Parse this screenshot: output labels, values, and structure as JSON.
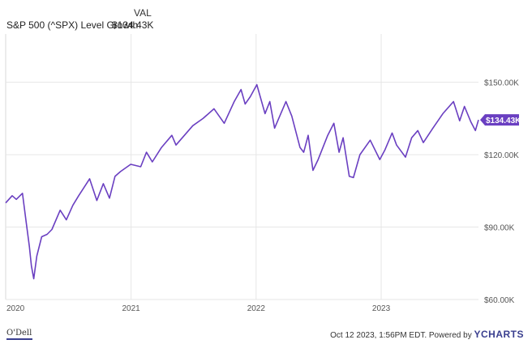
{
  "header": {
    "value_column": "VAL",
    "series_label": "S&P 500 (^SPX) Level Growth",
    "series_value": "$134.43K"
  },
  "footer": {
    "timestamp": "Oct 12 2023, 1:56PM EDT.",
    "powered_by": "Powered by",
    "brand": "YCHARTS",
    "logo_text": "O'Dell"
  },
  "chart_data": {
    "type": "line",
    "title": "",
    "xlabel": "",
    "ylabel": "",
    "x_ticks": [
      "2020",
      "2021",
      "2022",
      "2023"
    ],
    "y_ticks": [
      "$60.00K",
      "$90.00K",
      "$120.00K",
      "$150.00K"
    ],
    "ylim": [
      60,
      170
    ],
    "y_unit": "thousands of dollars",
    "grid": true,
    "line_color": "#6a3fc1",
    "end_label": "$134.43K",
    "series": [
      {
        "name": "S&P 500 (^SPX) Level Growth",
        "points": [
          [
            "2020-01",
            100.0
          ],
          [
            "2020-01-20",
            103.0
          ],
          [
            "2020-02-01",
            101.5
          ],
          [
            "2020-02-19",
            104.0
          ],
          [
            "2020-03-01",
            92.0
          ],
          [
            "2020-03-10",
            82.0
          ],
          [
            "2020-03-16",
            74.0
          ],
          [
            "2020-03-23",
            68.6
          ],
          [
            "2020-04-01",
            78.0
          ],
          [
            "2020-04-15",
            86.0
          ],
          [
            "2020-05-01",
            87.0
          ],
          [
            "2020-05-15",
            89.0
          ],
          [
            "2020-06-08",
            97.0
          ],
          [
            "2020-06-26",
            93.0
          ],
          [
            "2020-07-15",
            99.0
          ],
          [
            "2020-08-01",
            103.0
          ],
          [
            "2020-09-02",
            110.0
          ],
          [
            "2020-09-23",
            101.0
          ],
          [
            "2020-10-12",
            108.0
          ],
          [
            "2020-10-30",
            102.0
          ],
          [
            "2020-11-15",
            111.0
          ],
          [
            "2020-12-01",
            113.0
          ],
          [
            "2020-12-31",
            116.0
          ],
          [
            "2021-01-29",
            115.0
          ],
          [
            "2021-02-15",
            121.0
          ],
          [
            "2021-03-04",
            117.0
          ],
          [
            "2021-03-31",
            123.0
          ],
          [
            "2021-04-30",
            128.0
          ],
          [
            "2021-05-12",
            124.0
          ],
          [
            "2021-06-30",
            132.0
          ],
          [
            "2021-07-30",
            135.0
          ],
          [
            "2021-08-31",
            139.0
          ],
          [
            "2021-09-30",
            133.0
          ],
          [
            "2021-10-29",
            142.0
          ],
          [
            "2021-11-18",
            147.0
          ],
          [
            "2021-11-30",
            141.0
          ],
          [
            "2021-12-15",
            144.0
          ],
          [
            "2022-01-03",
            149.0
          ],
          [
            "2022-01-27",
            137.0
          ],
          [
            "2022-02-10",
            142.0
          ],
          [
            "2022-02-24",
            131.0
          ],
          [
            "2022-03-29",
            142.0
          ],
          [
            "2022-04-15",
            136.0
          ],
          [
            "2022-05-09",
            123.0
          ],
          [
            "2022-05-20",
            121.0
          ],
          [
            "2022-06-02",
            128.0
          ],
          [
            "2022-06-16",
            113.5
          ],
          [
            "2022-07-01",
            118.0
          ],
          [
            "2022-07-29",
            128.0
          ],
          [
            "2022-08-16",
            133.0
          ],
          [
            "2022-08-31",
            121.0
          ],
          [
            "2022-09-12",
            127.0
          ],
          [
            "2022-09-30",
            111.0
          ],
          [
            "2022-10-12",
            110.5
          ],
          [
            "2022-10-31",
            120.0
          ],
          [
            "2022-11-30",
            126.0
          ],
          [
            "2022-12-28",
            118.0
          ],
          [
            "2023-01-12",
            122.0
          ],
          [
            "2023-02-02",
            129.0
          ],
          [
            "2023-02-15",
            124.0
          ],
          [
            "2023-03-13",
            119.0
          ],
          [
            "2023-03-31",
            127.0
          ],
          [
            "2023-04-18",
            130.0
          ],
          [
            "2023-05-04",
            125.0
          ],
          [
            "2023-06-01",
            131.0
          ],
          [
            "2023-06-30",
            137.0
          ],
          [
            "2023-07-31",
            142.0
          ],
          [
            "2023-08-18",
            134.0
          ],
          [
            "2023-09-01",
            140.0
          ],
          [
            "2023-09-20",
            133.5
          ],
          [
            "2023-10-03",
            130.0
          ],
          [
            "2023-10-12",
            134.43
          ]
        ]
      }
    ]
  }
}
